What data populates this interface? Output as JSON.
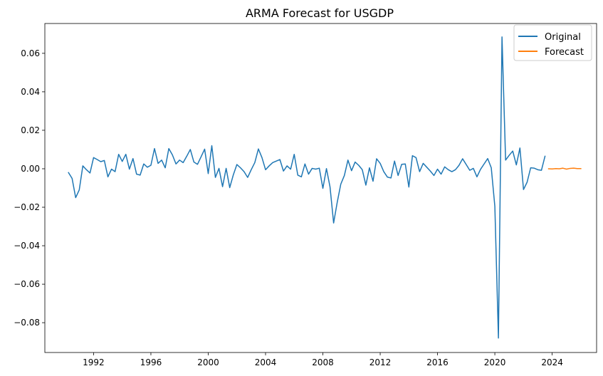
{
  "chart_data": {
    "type": "line",
    "title": "ARMA Forecast for USGDP",
    "xlabel": "",
    "ylabel": "",
    "xlim": [
      1988.6,
      2027.1
    ],
    "ylim": [
      -0.0955,
      0.0755
    ],
    "grid": false,
    "legend_position": "top-right",
    "x_ticks": [
      1992,
      1996,
      2000,
      2004,
      2008,
      2012,
      2016,
      2020,
      2024
    ],
    "x_tick_labels": [
      "1992",
      "1996",
      "2000",
      "2004",
      "2008",
      "2012",
      "2016",
      "2020",
      "2024"
    ],
    "y_ticks": [
      -0.08,
      -0.06,
      -0.04,
      -0.02,
      0.0,
      0.02,
      0.04,
      0.06
    ],
    "y_tick_labels": [
      "−0.08",
      "−0.06",
      "−0.04",
      "−0.02",
      "0.00",
      "0.02",
      "0.04",
      "0.06"
    ],
    "series": [
      {
        "name": "Original",
        "color": "#1f77b4",
        "x": [
          1990.25,
          1990.5,
          1990.75,
          1991.0,
          1991.25,
          1991.5,
          1991.75,
          1992.0,
          1992.25,
          1992.5,
          1992.75,
          1993.0,
          1993.25,
          1993.5,
          1993.75,
          1994.0,
          1994.25,
          1994.5,
          1994.75,
          1995.0,
          1995.25,
          1995.5,
          1995.75,
          1996.0,
          1996.25,
          1996.5,
          1996.75,
          1997.0,
          1997.25,
          1997.5,
          1997.75,
          1998.0,
          1998.25,
          1998.5,
          1998.75,
          1999.0,
          1999.25,
          1999.5,
          1999.75,
          2000.0,
          2000.25,
          2000.5,
          2000.75,
          2001.0,
          2001.25,
          2001.5,
          2001.75,
          2002.0,
          2002.25,
          2002.5,
          2002.75,
          2003.0,
          2003.25,
          2003.5,
          2003.75,
          2004.0,
          2004.25,
          2004.5,
          2004.75,
          2005.0,
          2005.25,
          2005.5,
          2005.75,
          2006.0,
          2006.25,
          2006.5,
          2006.75,
          2007.0,
          2007.25,
          2007.5,
          2007.75,
          2008.0,
          2008.25,
          2008.5,
          2008.75,
          2009.0,
          2009.25,
          2009.5,
          2009.75,
          2010.0,
          2010.25,
          2010.5,
          2010.75,
          2011.0,
          2011.25,
          2011.5,
          2011.75,
          2012.0,
          2012.25,
          2012.5,
          2012.75,
          2013.0,
          2013.25,
          2013.5,
          2013.75,
          2014.0,
          2014.25,
          2014.5,
          2014.75,
          2015.0,
          2015.25,
          2015.5,
          2015.75,
          2016.0,
          2016.25,
          2016.5,
          2016.75,
          2017.0,
          2017.25,
          2017.5,
          2017.75,
          2018.0,
          2018.25,
          2018.5,
          2018.75,
          2019.0,
          2019.25,
          2019.5,
          2019.75,
          2020.0,
          2020.25,
          2020.5,
          2020.75,
          2021.0,
          2021.25,
          2021.5,
          2021.75,
          2022.0,
          2022.25,
          2022.5,
          2022.75,
          2023.0,
          2023.25,
          2023.5
        ],
        "y": [
          -0.002,
          -0.005,
          -0.015,
          -0.011,
          0.0015,
          -0.0005,
          -0.0022,
          0.0058,
          0.0048,
          0.0037,
          0.0043,
          -0.0042,
          -0.0002,
          -0.0015,
          0.0075,
          0.0038,
          0.0075,
          -0.0002,
          0.0053,
          -0.0028,
          -0.0033,
          0.0025,
          0.0008,
          0.0018,
          0.0105,
          0.0028,
          0.0045,
          0.0005,
          0.0105,
          0.0072,
          0.0025,
          0.0045,
          0.0032,
          0.0065,
          0.01,
          0.0035,
          0.0023,
          0.0062,
          0.0102,
          -0.0025,
          0.012,
          -0.0045,
          0.0002,
          -0.0093,
          0.0002,
          -0.0098,
          -0.0032,
          0.0022,
          0.0005,
          -0.0015,
          -0.0045,
          -0.0005,
          0.0032,
          0.0103,
          0.0058,
          -0.0005,
          0.0015,
          0.0032,
          0.004,
          0.0048,
          -0.0012,
          0.0015,
          -0.0002,
          0.0075,
          -0.0033,
          -0.0042,
          0.0025,
          -0.0028,
          0.0002,
          -0.0002,
          0.0003,
          -0.0102,
          0.0001,
          -0.0095,
          -0.0282,
          -0.0175,
          -0.008,
          -0.0035,
          0.0045,
          -0.001,
          0.0035,
          0.0018,
          -0.0005,
          -0.0085,
          0.0005,
          -0.0065,
          0.0052,
          0.0028,
          -0.0015,
          -0.0043,
          -0.0048,
          0.004,
          -0.0035,
          0.0023,
          0.0025,
          -0.0095,
          0.0068,
          0.0058,
          -0.0015,
          0.0028,
          0.0008,
          -0.0012,
          -0.0035,
          -0.0002,
          -0.0028,
          0.001,
          -0.0005,
          -0.0015,
          -0.0005,
          0.0018,
          0.0052,
          0.0022,
          -0.0008,
          0.0002,
          -0.0042,
          -0.0003,
          0.0025,
          0.0053,
          0.0005,
          -0.0195,
          -0.088,
          0.0685,
          0.0045,
          0.007,
          0.0092,
          0.002,
          0.0108,
          -0.0108,
          -0.007,
          0.0005,
          0.0003,
          -0.0005,
          -0.0008,
          0.0065
        ]
      },
      {
        "name": "Forecast",
        "color": "#ff7f0e",
        "x": [
          2023.75,
          2024.0,
          2024.25,
          2024.5,
          2024.75,
          2025.0,
          2025.25,
          2025.5,
          2025.75,
          2026.0
        ],
        "y": [
          0.0,
          -0.0001,
          0.0001,
          0.0,
          0.0003,
          -0.0002,
          0.0002,
          0.0003,
          0.0001,
          0.0001
        ]
      }
    ]
  }
}
